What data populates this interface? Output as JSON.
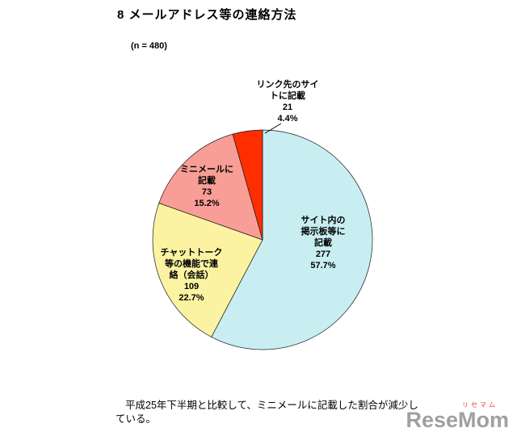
{
  "page": {
    "title": "8 メールアドレス等の連絡方法",
    "sample_size": "(n = 480)",
    "note_lines": [
      "平成25年下半期と比較して、ミニメールに記載した割合が減少し",
      "ている。"
    ],
    "watermark": {
      "kana": "リセマム",
      "name": "ReseMom"
    }
  },
  "chart_data": {
    "type": "pie",
    "title": "8 メールアドレス等の連絡方法",
    "n": 480,
    "start_angle_deg": 0,
    "direction": "clockwise",
    "legend_position": "none",
    "slices": [
      {
        "label": "サイト内の掲示板等に記載",
        "label_lines": [
          "サイト内の",
          "掲示板等に",
          "記載"
        ],
        "value": 277,
        "pct": "57.7%",
        "color": "#C8EEF2"
      },
      {
        "label": "チャットトーク等の機能で連絡（会話）",
        "label_lines": [
          "チャットトーク",
          "等の機能で連",
          "絡（会話）"
        ],
        "value": 109,
        "pct": "22.7%",
        "color": "#FBF3A2"
      },
      {
        "label": "ミニメールに記載",
        "label_lines": [
          "ミニメールに",
          "記載"
        ],
        "value": 73,
        "pct": "15.2%",
        "color": "#F89E96"
      },
      {
        "label": "リンク先のサイトに記載",
        "label_lines": [
          "リンク先のサイ",
          "トに記載"
        ],
        "value": 21,
        "pct": "4.4%",
        "color": "#FE2E00"
      }
    ]
  }
}
